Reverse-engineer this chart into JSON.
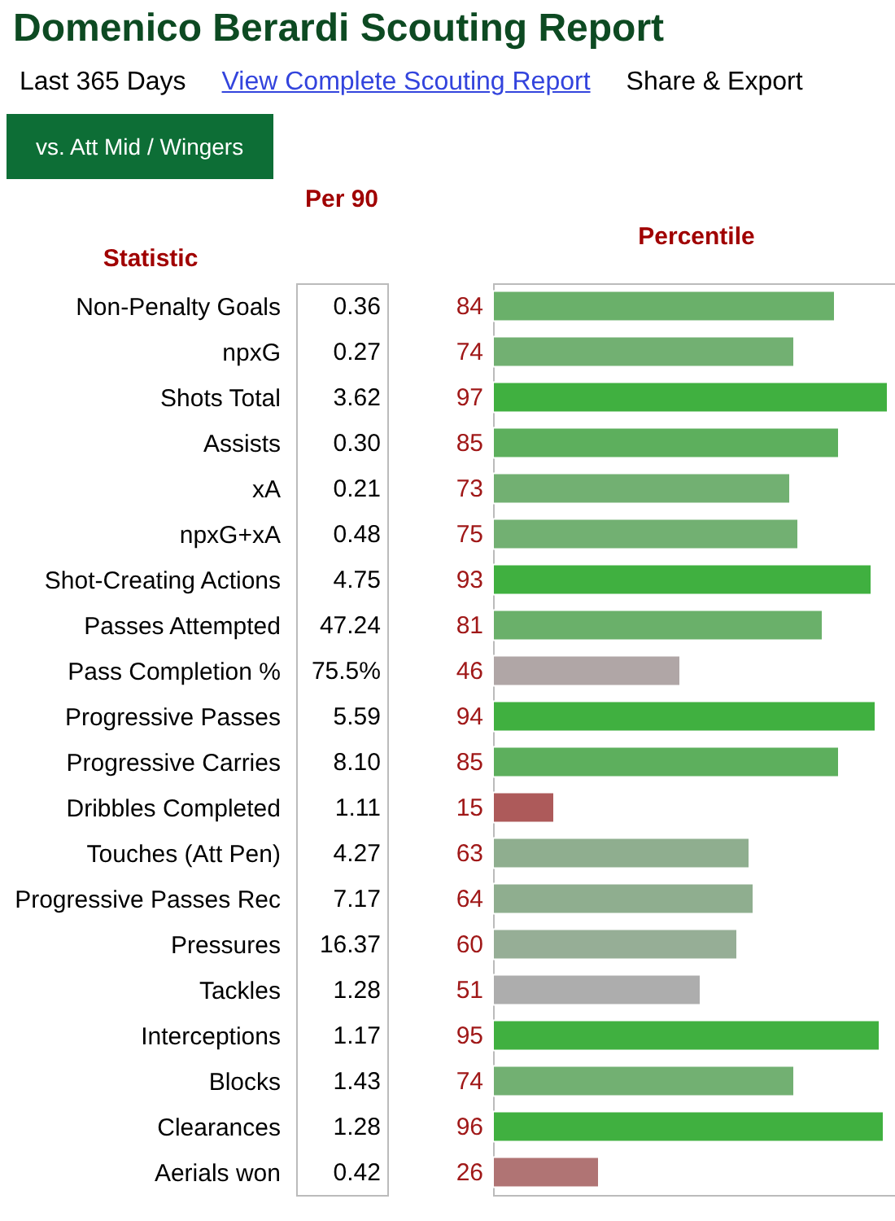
{
  "chart_data": {
    "type": "bar",
    "orientation": "horizontal",
    "title": "Domenico Berardi Scouting Report",
    "subtitle": "vs. Att Mid / Wingers",
    "ylabel": "Statistic",
    "xlabel": "Percentile",
    "categories": [
      "Non-Penalty Goals",
      "npxG",
      "Shots Total",
      "Assists",
      "xA",
      "npxG+xA",
      "Shot-Creating Actions",
      "Passes Attempted",
      "Pass Completion %",
      "Progressive Passes",
      "Progressive Carries",
      "Dribbles Completed",
      "Touches (Att Pen)",
      "Progressive Passes Rec",
      "Pressures",
      "Tackles",
      "Interceptions",
      "Blocks",
      "Clearances",
      "Aerials won"
    ],
    "values": [
      84,
      74,
      97,
      85,
      73,
      75,
      93,
      81,
      46,
      94,
      85,
      15,
      63,
      64,
      60,
      51,
      95,
      74,
      96,
      26
    ],
    "colors": [
      "#6ab06a",
      "#72b072",
      "#40b040",
      "#5daf5d",
      "#72b072",
      "#72b072",
      "#40b040",
      "#6ab06a",
      "#b0a6a6",
      "#40b040",
      "#5daf5d",
      "#ad5a5a",
      "#8fae8f",
      "#8fae8f",
      "#96ae96",
      "#adadad",
      "#40b040",
      "#72b072",
      "#40b040",
      "#b07474"
    ],
    "xlim": [
      0,
      100
    ],
    "data_labels": true,
    "annotations": [
      "Last 365 Days",
      "View Complete Scouting Report",
      "Share & Export",
      "Per 90",
      "0.36",
      "0.27",
      "3.62",
      "0.30",
      "0.21",
      "0.48",
      "4.75",
      "47.24",
      "75.5%",
      "5.59",
      "8.10",
      "1.11",
      "4.27",
      "7.17",
      "16.37",
      "1.28",
      "1.17",
      "1.43",
      "1.28",
      "0.42"
    ]
  }
}
